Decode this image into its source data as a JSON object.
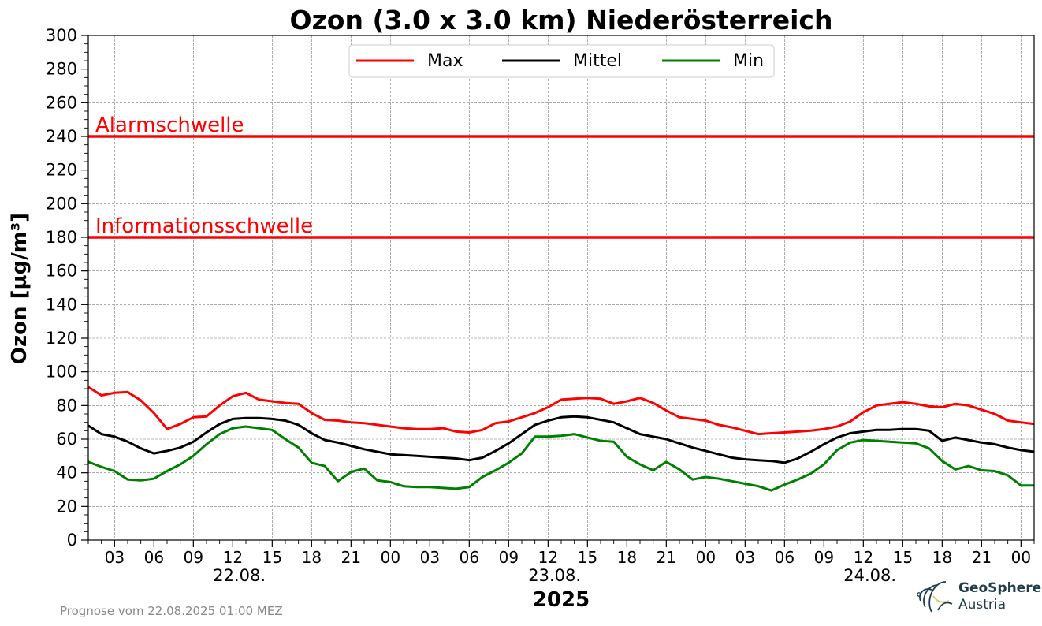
{
  "chart_data": {
    "type": "line",
    "title": "Ozon (3.0 x 3.0 km) Niederösterreich",
    "ylabel": "Ozon [µg/m³]",
    "xlabel": "2025",
    "ylim": [
      0,
      300
    ],
    "yticks": [
      "0",
      "20",
      "40",
      "60",
      "80",
      "100",
      "120",
      "140",
      "160",
      "180",
      "200",
      "220",
      "240",
      "260",
      "280",
      "300"
    ],
    "xtick_hours": [
      "03",
      "06",
      "09",
      "12",
      "15",
      "18",
      "21",
      "00",
      "03",
      "06",
      "09",
      "12",
      "15",
      "18",
      "21",
      "00",
      "03",
      "06",
      "09",
      "12",
      "15",
      "18",
      "21",
      "00"
    ],
    "date_labels": [
      "22.08.",
      "23.08.",
      "24.08."
    ],
    "grid": true,
    "legend_position": "top-center",
    "thresholds": [
      {
        "name": "Alarmschwelle",
        "value": 240,
        "color": "#ff0000"
      },
      {
        "name": "Informationsschwelle",
        "value": 180,
        "color": "#ff0000"
      }
    ],
    "series": [
      {
        "name": "Max",
        "color": "#ff0000",
        "values": [
          91,
          86,
          87.5,
          88,
          83,
          75.5,
          66,
          69,
          73,
          73.5,
          80,
          85.5,
          87.5,
          83.5,
          82.5,
          81.5,
          81,
          75.5,
          71.5,
          71,
          70,
          69.5,
          68.5,
          67.5,
          66.5,
          66,
          66,
          66.5,
          64.5,
          64,
          65.5,
          69.5,
          70.5,
          73,
          75.5,
          79,
          83.5,
          84,
          84.5,
          84,
          81,
          82.5,
          84.5,
          81.5,
          77,
          73,
          72,
          71,
          68.5,
          67,
          65,
          63,
          63.5,
          64,
          64.5,
          65,
          66,
          67.5,
          70.5,
          76,
          80,
          81,
          82,
          81,
          79.5,
          79,
          81,
          80,
          77.5,
          75,
          71,
          70,
          69
        ]
      },
      {
        "name": "Mittel",
        "color": "#000000",
        "values": [
          68,
          63,
          61.5,
          58.5,
          54.5,
          51.5,
          53,
          55,
          58.5,
          64,
          69,
          72,
          72.5,
          72.5,
          72,
          71,
          68.5,
          63.5,
          59.5,
          58,
          56,
          54,
          52.5,
          51,
          50.5,
          50,
          49.5,
          49,
          48.5,
          47.5,
          49,
          53,
          57.5,
          63,
          68.5,
          71,
          73,
          73.5,
          73,
          71.5,
          70,
          66.5,
          63,
          61.5,
          60,
          57.5,
          55,
          53,
          51,
          49,
          48,
          47.5,
          47,
          46,
          48.5,
          52.5,
          57,
          61,
          63.5,
          64.5,
          65.5,
          65.5,
          66,
          66,
          65,
          59,
          61,
          59.5,
          58,
          57,
          55,
          53.5,
          52.5
        ]
      },
      {
        "name": "Min",
        "color": "#008000",
        "values": [
          46.5,
          43.5,
          41,
          36,
          35.5,
          36.5,
          41,
          45,
          50,
          57,
          63,
          66.5,
          67.5,
          66.5,
          65.5,
          60,
          55,
          46,
          44,
          35,
          40.5,
          42.5,
          35.5,
          34.5,
          32,
          31.5,
          31.5,
          31,
          30.5,
          31.5,
          37.5,
          41.5,
          46,
          51.5,
          61.5,
          61.5,
          62,
          63,
          61,
          59,
          58.5,
          49.5,
          45,
          41.5,
          46.5,
          42,
          36,
          37.5,
          36.5,
          35,
          33.5,
          32,
          29.5,
          33,
          36,
          39.5,
          45,
          53.5,
          58,
          59.5,
          59,
          58.5,
          58,
          57.5,
          54.5,
          47,
          42,
          44,
          41.5,
          41,
          38.5,
          32.5,
          32.5
        ]
      }
    ]
  },
  "footer": {
    "note": "Prognose vom 22.08.2025 01:00 MEZ",
    "logo_line1": "GeoSphere",
    "logo_line2": "Austria"
  }
}
